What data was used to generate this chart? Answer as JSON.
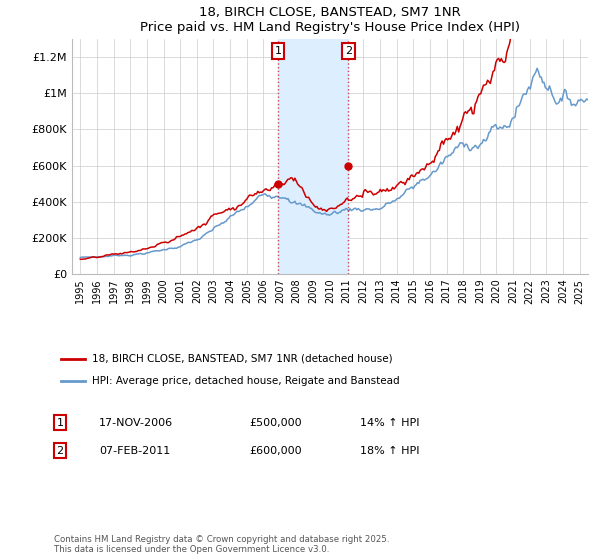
{
  "title": "18, BIRCH CLOSE, BANSTEAD, SM7 1NR",
  "subtitle": "Price paid vs. HM Land Registry's House Price Index (HPI)",
  "legend_line1": "18, BIRCH CLOSE, BANSTEAD, SM7 1NR (detached house)",
  "legend_line2": "HPI: Average price, detached house, Reigate and Banstead",
  "footnote": "Contains HM Land Registry data © Crown copyright and database right 2025.\nThis data is licensed under the Open Government Licence v3.0.",
  "transaction1_date": "17-NOV-2006",
  "transaction1_price": "£500,000",
  "transaction1_hpi": "14% ↑ HPI",
  "transaction2_date": "07-FEB-2011",
  "transaction2_price": "£600,000",
  "transaction2_hpi": "18% ↑ HPI",
  "sale1_x": 2006.88,
  "sale1_y": 500000,
  "sale2_x": 2011.1,
  "sale2_y": 600000,
  "vline1_x": 2006.88,
  "vline2_x": 2011.1,
  "shade_x1": 2006.88,
  "shade_x2": 2011.1,
  "ylim": [
    0,
    1300000
  ],
  "xlim_left": 1994.5,
  "xlim_right": 2025.5,
  "red_color": "#cc0000",
  "blue_color": "#6699cc",
  "shade_color": "#ddeeff",
  "grid_color": "#cccccc",
  "background_color": "#ffffff",
  "yticks": [
    0,
    200000,
    400000,
    600000,
    800000,
    1000000,
    1200000
  ],
  "ylabels": [
    "£0",
    "£200K",
    "£400K",
    "£600K",
    "£800K",
    "£1M",
    "£1.2M"
  ]
}
